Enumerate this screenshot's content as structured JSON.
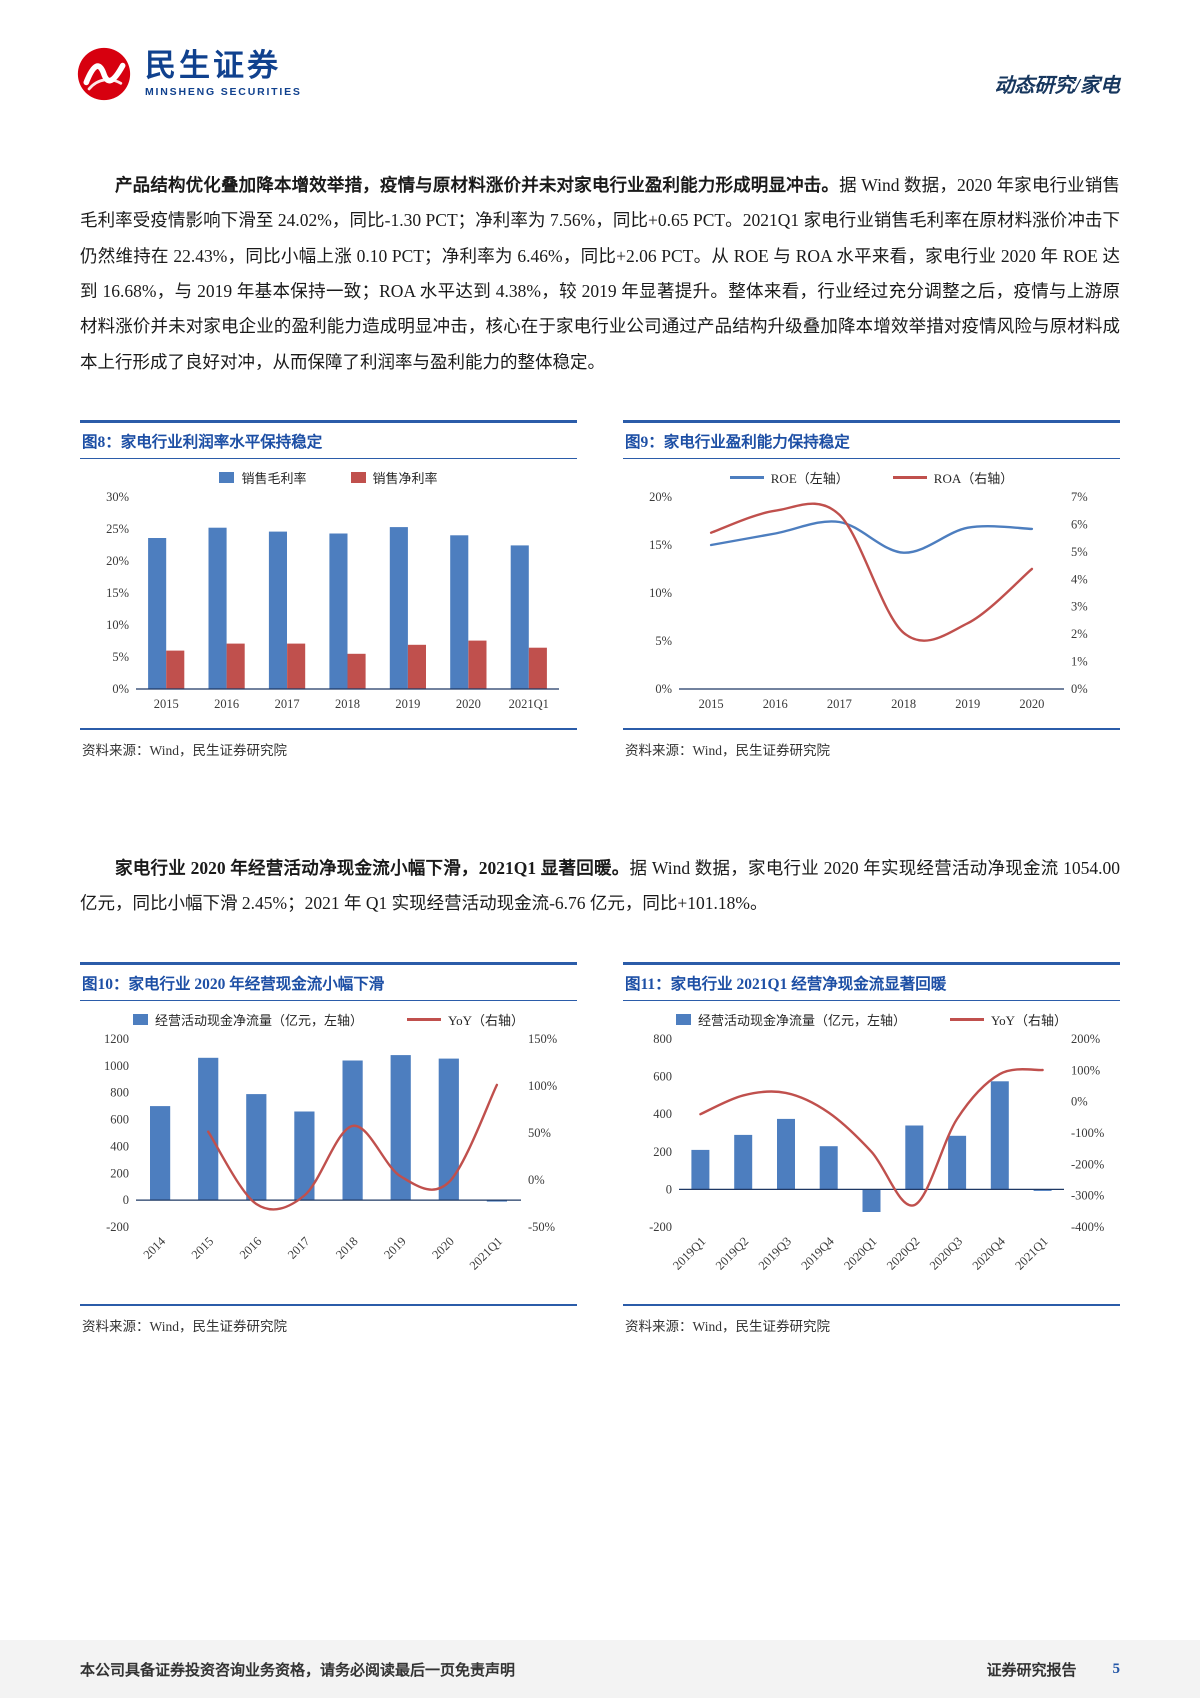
{
  "page": {
    "header": {
      "brand_cn": "民生证券",
      "brand_en": "MINSHENG SECURITIES",
      "report_type": "动态研究/家电"
    },
    "footer": {
      "left": "本公司具备证券投资咨询业务资格，请务必阅读最后一页免责声明",
      "right": "证券研究报告",
      "page_number": "5"
    }
  },
  "paragraphs": [
    {
      "lead": "产品结构优化叠加降本增效举措，疫情与原材料涨价并未对家电行业盈利能力形成明显冲击。",
      "body": "据 Wind 数据，2020 年家电行业销售毛利率受疫情影响下滑至 24.02%，同比-1.30 PCT；净利率为 7.56%，同比+0.65 PCT。2021Q1 家电行业销售毛利率在原材料涨价冲击下仍然维持在 22.43%，同比小幅上涨 0.10 PCT；净利率为 6.46%，同比+2.06 PCT。从 ROE 与 ROA 水平来看，家电行业 2020 年 ROE 达到 16.68%，与 2019 年基本保持一致；ROA 水平达到 4.38%，较 2019 年显著提升。整体来看，行业经过充分调整之后，疫情与上游原材料涨价并未对家电企业的盈利能力造成明显冲击，核心在于家电行业公司通过产品结构升级叠加降本增效举措对疫情风险与原材料成本上行形成了良好对冲，从而保障了利润率与盈利能力的整体稳定。"
    },
    {
      "lead": "家电行业 2020 年经营活动净现金流小幅下滑，2021Q1 显著回暖。",
      "body": "据 Wind 数据，家电行业 2020 年实现经营活动净现金流 1054.00 亿元，同比小幅下滑 2.45%；2021 年 Q1 实现经营活动现金流-6.76 亿元，同比+101.18%。"
    }
  ],
  "source_note": "资料来源：Wind，民生证券研究院",
  "colors": {
    "bar_blue": "#4d7ebf",
    "bar_red": "#c0504d",
    "rule_blue": "#2b5ca9",
    "title_blue": "#1d4fa5",
    "logo_red": "#d7000f"
  },
  "chart_data": [
    {
      "figure_label": "图8：家电行业利润率水平保持稳定",
      "type": "bar",
      "categories": [
        "2015",
        "2016",
        "2017",
        "2018",
        "2019",
        "2020",
        "2021Q1"
      ],
      "left_axis": {
        "min": 0,
        "max": 30,
        "step": 5,
        "format": "pct"
      },
      "right_axis": null,
      "rotate_x_labels": false,
      "series": [
        {
          "name": "销售毛利率",
          "kind": "bar",
          "axis": "left",
          "color": "#4d7ebf",
          "values": [
            23.6,
            25.2,
            24.6,
            24.3,
            25.3,
            24.02,
            22.43
          ]
        },
        {
          "name": "销售净利率",
          "kind": "bar",
          "axis": "left",
          "color": "#c0504d",
          "values": [
            6.0,
            7.1,
            7.1,
            5.5,
            6.9,
            7.56,
            6.46
          ]
        }
      ]
    },
    {
      "figure_label": "图9：家电行业盈利能力保持稳定",
      "type": "line",
      "categories": [
        "2015",
        "2016",
        "2017",
        "2018",
        "2019",
        "2020"
      ],
      "left_axis": {
        "min": 0,
        "max": 20,
        "step": 5,
        "format": "pct"
      },
      "right_axis": {
        "min": 0,
        "max": 7,
        "step": 1,
        "format": "pct"
      },
      "rotate_x_labels": false,
      "series": [
        {
          "name": "ROE（左轴）",
          "kind": "line",
          "axis": "left",
          "color": "#4d7ebf",
          "values": [
            15.0,
            16.2,
            17.4,
            14.2,
            16.8,
            16.68
          ]
        },
        {
          "name": "ROA（右轴）",
          "kind": "line",
          "axis": "right",
          "color": "#c0504d",
          "values": [
            5.7,
            6.5,
            6.35,
            2.05,
            2.4,
            4.38
          ]
        }
      ]
    },
    {
      "figure_label": "图10：家电行业 2020 年经营现金流小幅下滑",
      "type": "bar-line",
      "categories": [
        "2014",
        "2015",
        "2016",
        "2017",
        "2018",
        "2019",
        "2020",
        "2021Q1"
      ],
      "left_axis": {
        "min": -200,
        "max": 1200,
        "step": 200,
        "format": "num"
      },
      "right_axis": {
        "min": -50,
        "max": 150,
        "step": 50,
        "format": "pct"
      },
      "rotate_x_labels": true,
      "series": [
        {
          "name": "经营活动现金净流量（亿元，左轴）",
          "kind": "bar",
          "axis": "left",
          "color": "#4d7ebf",
          "values": [
            700,
            1060,
            790,
            660,
            1040,
            1080,
            1054,
            -6.76
          ]
        },
        {
          "name": "YoY（右轴）",
          "kind": "line",
          "axis": "right",
          "color": "#c0504d",
          "values": [
            null,
            51.4,
            -25.5,
            -16.5,
            57.6,
            3.8,
            -2.45,
            101.18
          ]
        }
      ]
    },
    {
      "figure_label": "图11：家电行业 2021Q1 经营净现金流显著回暖",
      "type": "bar-line",
      "categories": [
        "2019Q1",
        "2019Q2",
        "2019Q3",
        "2019Q4",
        "2020Q1",
        "2020Q2",
        "2020Q3",
        "2020Q4",
        "2021Q1"
      ],
      "left_axis": {
        "min": -200,
        "max": 800,
        "step": 200,
        "format": "num"
      },
      "right_axis": {
        "min": -400,
        "max": 200,
        "step": 100,
        "format": "pct"
      },
      "rotate_x_labels": true,
      "series": [
        {
          "name": "经营活动现金净流量（亿元，左轴）",
          "kind": "bar",
          "axis": "left",
          "color": "#4d7ebf",
          "values": [
            210,
            290,
            375,
            230,
            -120,
            340,
            285,
            575,
            -6.76
          ]
        },
        {
          "name": "YoY（右轴）",
          "kind": "line",
          "axis": "right",
          "color": "#c0504d",
          "values": [
            -40,
            20,
            28,
            -35,
            -160,
            -330,
            -55,
            88,
            101.18
          ]
        }
      ]
    }
  ]
}
